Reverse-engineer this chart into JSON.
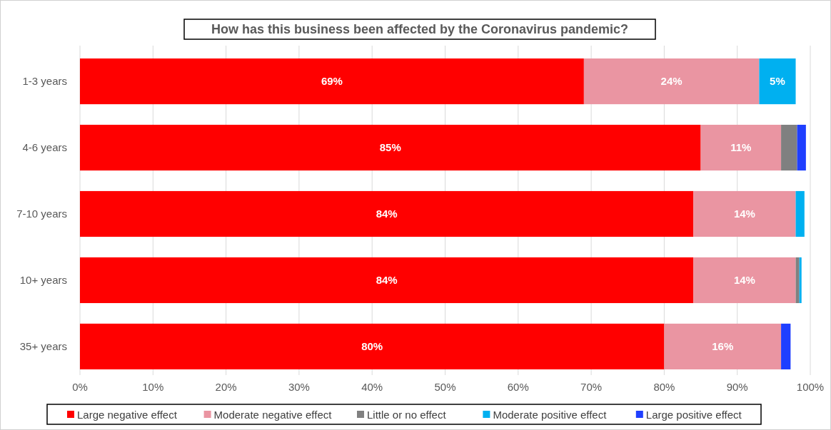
{
  "chart_data": {
    "type": "bar",
    "orientation": "horizontal",
    "stacked": true,
    "title": "How has this business been affected by the Coronavirus pandemic?",
    "categories": [
      "1-3 years",
      "4-6 years",
      "7-10 years",
      "10+ years",
      "35+ years"
    ],
    "series": [
      {
        "name": "Large negative effect",
        "color": "#ff0000",
        "values": [
          69,
          85,
          84,
          84,
          80
        ],
        "value_labels": [
          "69%",
          "85%",
          "84%",
          "84%",
          "80%"
        ]
      },
      {
        "name": "Moderate negative effect",
        "color": "#ea95a2",
        "values": [
          24,
          11,
          14,
          14,
          16
        ],
        "value_labels": [
          "24%",
          "11%",
          "14%",
          "14%",
          "16%"
        ]
      },
      {
        "name": "Little or no effect",
        "color": "#808080",
        "values": [
          null,
          2.2,
          null,
          0.5,
          null
        ]
      },
      {
        "name": "Moderate positive effect",
        "color": "#00b0f0",
        "values": [
          5,
          null,
          1.2,
          0.3,
          null
        ],
        "value_labels": [
          "5%",
          null,
          null,
          null,
          null
        ]
      },
      {
        "name": "Large positive effect",
        "color": "#1f3fff",
        "values": [
          null,
          1.2,
          null,
          null,
          1.3
        ]
      }
    ],
    "xlim": [
      0,
      100
    ],
    "xticks": [
      {
        "value": 0,
        "label": "0%"
      },
      {
        "value": 10,
        "label": "10%"
      },
      {
        "value": 20,
        "label": "20%"
      },
      {
        "value": 30,
        "label": "30%"
      },
      {
        "value": 40,
        "label": "40%"
      },
      {
        "value": 50,
        "label": "50%"
      },
      {
        "value": 60,
        "label": "60%"
      },
      {
        "value": 70,
        "label": "70%"
      },
      {
        "value": 80,
        "label": "80%"
      },
      {
        "value": 90,
        "label": "90%"
      },
      {
        "value": 100,
        "label": "100%"
      }
    ],
    "grid": "x",
    "legend": "bottom"
  }
}
